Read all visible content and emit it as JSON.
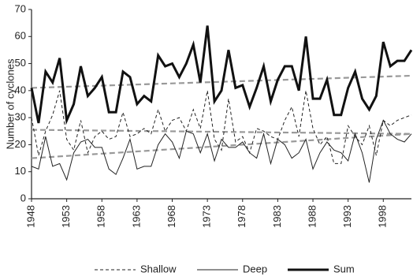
{
  "chart_data": {
    "type": "line",
    "y_label": "Number of cyclones",
    "x": [
      1948,
      1949,
      1950,
      1951,
      1952,
      1953,
      1954,
      1955,
      1956,
      1957,
      1958,
      1959,
      1960,
      1961,
      1962,
      1963,
      1964,
      1965,
      1966,
      1967,
      1968,
      1969,
      1970,
      1971,
      1972,
      1973,
      1974,
      1975,
      1976,
      1977,
      1978,
      1979,
      1980,
      1981,
      1982,
      1983,
      1984,
      1985,
      1986,
      1987,
      1988,
      1989,
      1990,
      1991,
      1992,
      1993,
      1994,
      1995,
      1996,
      1997,
      1998,
      1999,
      2000,
      2001,
      2002
    ],
    "series": [
      {
        "name": "Shallow",
        "color": "#222222",
        "dash": "4,3",
        "width": 1,
        "values": [
          30,
          16,
          25,
          31,
          40,
          22,
          18,
          29,
          17,
          23,
          25,
          22,
          23,
          32,
          23,
          24,
          26,
          24,
          33,
          25,
          29,
          30,
          25,
          33,
          26,
          40,
          22,
          18,
          37,
          21,
          23,
          17,
          26,
          25,
          23,
          22,
          29,
          34,
          23,
          40,
          26,
          20,
          23,
          13,
          13,
          27,
          23,
          20,
          27,
          16,
          29,
          27,
          29,
          30,
          31
        ]
      },
      {
        "name": "Deep",
        "color": "#222222",
        "dash": "none",
        "width": 1,
        "values": [
          12,
          11,
          23,
          12,
          13,
          7,
          17,
          21,
          22,
          19,
          19,
          11,
          9,
          15,
          22,
          11,
          12,
          12,
          20,
          24,
          21,
          15,
          25,
          24,
          17,
          24,
          14,
          22,
          19,
          19,
          21,
          17,
          15,
          24,
          13,
          22,
          20,
          15,
          17,
          22,
          11,
          17,
          21,
          18,
          17,
          14,
          24,
          17,
          6,
          22,
          29,
          24,
          22,
          21,
          24
        ]
      },
      {
        "name": "Sum",
        "color": "#111111",
        "dash": "none",
        "width": 3,
        "values": [
          41,
          28,
          47,
          43,
          52,
          29,
          35,
          49,
          38,
          41,
          45,
          32,
          32,
          47,
          45,
          35,
          38,
          36,
          53,
          49,
          50,
          45,
          50,
          57,
          43,
          64,
          36,
          40,
          55,
          41,
          42,
          34,
          41,
          49,
          36,
          44,
          49,
          49,
          40,
          60,
          37,
          37,
          44,
          31,
          31,
          41,
          47,
          37,
          33,
          38,
          58,
          49,
          51,
          51,
          55
        ]
      }
    ],
    "trends": [
      {
        "color": "#999999",
        "x": [
          1948,
          2002
        ],
        "values": [
          41,
          45.5
        ]
      },
      {
        "color": "#999999",
        "x": [
          1948,
          2002
        ],
        "values": [
          25.5,
          24
        ]
      },
      {
        "color": "#999999",
        "x": [
          1948,
          2002
        ],
        "values": [
          15,
          24
        ]
      }
    ],
    "xlim": [
      1948,
      2002
    ],
    "xticks": [
      1948,
      1953,
      1958,
      1963,
      1968,
      1973,
      1978,
      1983,
      1988,
      1993,
      1998
    ],
    "ylim": [
      0,
      70
    ],
    "yticks": [
      0,
      10,
      20,
      30,
      40,
      50,
      60,
      70
    ],
    "grid": false
  }
}
